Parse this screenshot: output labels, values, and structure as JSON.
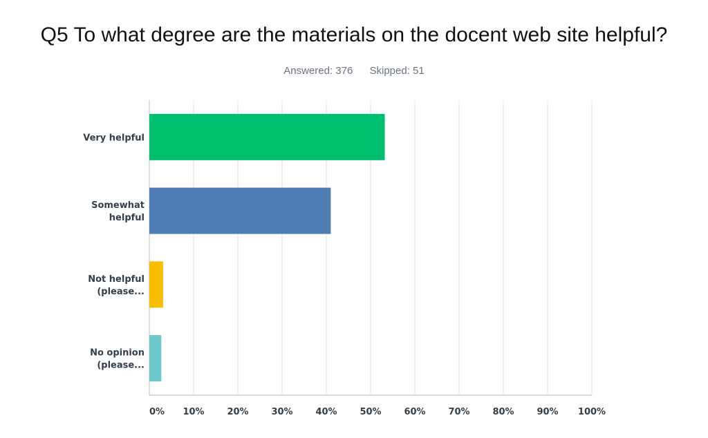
{
  "question": {
    "title": "Q5 To what degree are the materials on the docent web site helpful?",
    "answered_label": "Answered: 376",
    "skipped_label": "Skipped: 51"
  },
  "chart_data": {
    "type": "bar",
    "orientation": "horizontal",
    "title": "Q5 To what degree are the materials on the docent web site helpful?",
    "categories": [
      [
        "Very helpful"
      ],
      [
        "Somewhat",
        "helpful"
      ],
      [
        "Not helpful",
        "(please..."
      ],
      [
        "No opinion",
        "(please..."
      ]
    ],
    "values": [
      53.2,
      41.0,
      3.1,
      2.7
    ],
    "unit": "%",
    "colors": [
      "#00bf6f",
      "#507cb6",
      "#f9be00",
      "#6bc8cd"
    ],
    "xlim": [
      0,
      100
    ],
    "xticks": [
      0,
      10,
      20,
      30,
      40,
      50,
      60,
      70,
      80,
      90,
      100
    ],
    "xtick_labels": [
      "0%",
      "10%",
      "20%",
      "30%",
      "40%",
      "50%",
      "60%",
      "70%",
      "80%",
      "90%",
      "100%"
    ],
    "grid": true,
    "xlabel": "",
    "ylabel": ""
  }
}
